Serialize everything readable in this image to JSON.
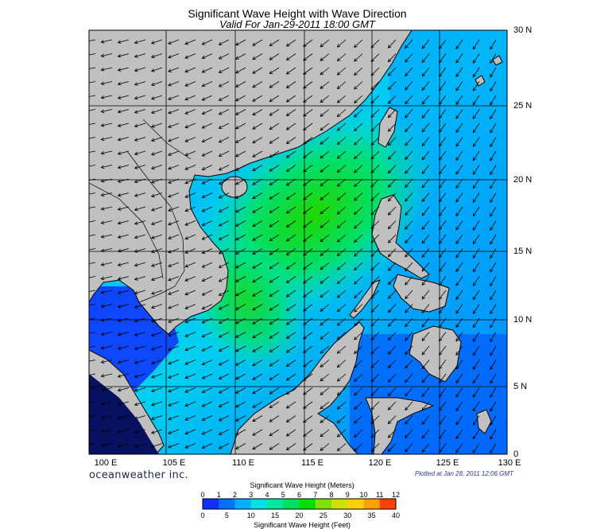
{
  "header": {
    "title": "Significant Wave Height with Wave Direction",
    "subtitle": "Valid For Jan-29-2011 18:00 GMT"
  },
  "axes": {
    "lat_labels": [
      "30 N",
      "25 N",
      "20 N",
      "15 N",
      "10 N",
      "5 N",
      "0"
    ],
    "lon_labels": [
      "100 E",
      "105 E",
      "110 E",
      "115 E",
      "120 E",
      "125 E",
      "130 E"
    ]
  },
  "footer": {
    "credit": "oceanweather inc.",
    "plotted": "Plotted at Jan 28, 2011 12:06 GMT"
  },
  "legend": {
    "meters_title": "Significant Wave Height (Meters)",
    "feet_title": "Significant Wave Height (Feet)",
    "meters_ticks": [
      "0",
      "1",
      "2",
      "3",
      "4",
      "5",
      "6",
      "7",
      "8",
      "9",
      "10",
      "11",
      "12"
    ],
    "feet_ticks": [
      "0",
      "5",
      "10",
      "15",
      "20",
      "25",
      "30",
      "35",
      "40"
    ],
    "colors": [
      "#1030ff",
      "#0070ff",
      "#00b0ff",
      "#00e0e0",
      "#00e8a0",
      "#00e060",
      "#00e000",
      "#80e000",
      "#d0e000",
      "#ffd000",
      "#ffa000",
      "#ff4000"
    ]
  },
  "colors": {
    "land": "#c0c0c0",
    "sea_deep": "#1040ff",
    "sea_mid": "#00b8ff",
    "sea_high": "#00e060",
    "arrow": "#000000"
  }
}
